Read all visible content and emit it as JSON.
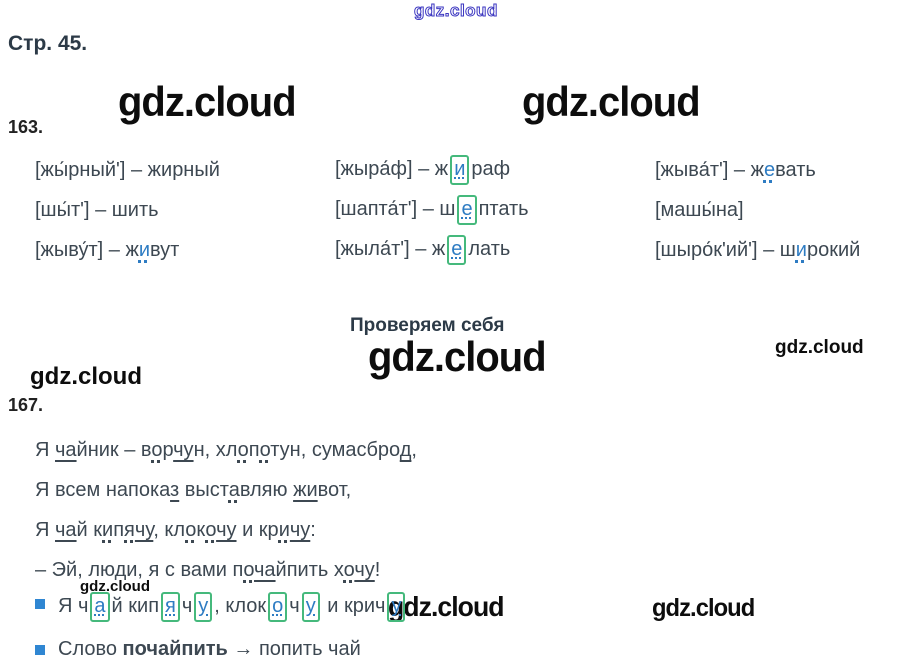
{
  "brand": {
    "text": "gdz.cloud"
  },
  "colors": {
    "accent_blue_letter": "#2e7cc3",
    "orthogram_box_green": "#45b97c",
    "bullet_blue": "#2f86d2",
    "watermark_outline_blue": "#3a35c0",
    "ink": "#3d4852"
  },
  "page": {
    "title": "Стр. 45."
  },
  "exercise163": {
    "number": "163.",
    "rows": [
      [
        [
          {
            "t": "[жы́рный'] – жирный",
            "m": "p"
          }
        ],
        [
          {
            "t": "[жыра́ф] – ж",
            "m": "p"
          },
          {
            "t": "и",
            "m": "x"
          },
          {
            "t": "раф",
            "m": "p"
          }
        ],
        [
          {
            "t": "[жыва́т'] – ж",
            "m": "p"
          },
          {
            "t": "е",
            "m": "b"
          },
          {
            "t": "вать",
            "m": "p"
          }
        ]
      ],
      [
        [
          {
            "t": "[шы́т'] – шить",
            "m": "p"
          }
        ],
        [
          {
            "t": "[шапта́т'] – ш",
            "m": "p"
          },
          {
            "t": "е",
            "m": "x"
          },
          {
            "t": "птать",
            "m": "p"
          }
        ],
        [
          {
            "t": "[машы́на]",
            "m": "p"
          }
        ]
      ],
      [
        [
          {
            "t": "[жыву́т] – ж",
            "m": "p"
          },
          {
            "t": "и",
            "m": "b"
          },
          {
            "t": "вут",
            "m": "p"
          }
        ],
        [
          {
            "t": "[жыла́т'] – ж",
            "m": "p"
          },
          {
            "t": "е",
            "m": "x"
          },
          {
            "t": "лать",
            "m": "p"
          }
        ],
        [
          {
            "t": "[шыро́к'ий'] – ш",
            "m": "p"
          },
          {
            "t": "и",
            "m": "b"
          },
          {
            "t": "рокий",
            "m": "p"
          }
        ]
      ]
    ]
  },
  "heading": {
    "text": "Проверяем себя"
  },
  "exercise167": {
    "number": "167.",
    "poem": [
      [
        {
          "t": "Я ",
          "m": "p"
        },
        {
          "t": "ча",
          "m": "u"
        },
        {
          "t": "йник – в",
          "m": "p"
        },
        {
          "t": "о",
          "m": "d"
        },
        {
          "t": "р",
          "m": "p"
        },
        {
          "t": "чу",
          "m": "u"
        },
        {
          "t": "н, хл",
          "m": "p"
        },
        {
          "t": "о",
          "m": "d"
        },
        {
          "t": "п",
          "m": "p"
        },
        {
          "t": "о",
          "m": "d"
        },
        {
          "t": "тун, сумасбро",
          "m": "p"
        },
        {
          "t": "д",
          "m": "u"
        },
        {
          "t": ",",
          "m": "p"
        }
      ],
      [
        {
          "t": "Я всем напока",
          "m": "p"
        },
        {
          "t": "з",
          "m": "u"
        },
        {
          "t": " выст",
          "m": "p"
        },
        {
          "t": "а",
          "m": "d"
        },
        {
          "t": "вляю ",
          "m": "p"
        },
        {
          "t": "жи",
          "m": "u"
        },
        {
          "t": "вот,",
          "m": "p"
        }
      ],
      [
        {
          "t": "Я ",
          "m": "p"
        },
        {
          "t": "ча",
          "m": "u"
        },
        {
          "t": "й к",
          "m": "p"
        },
        {
          "t": "и",
          "m": "d"
        },
        {
          "t": "п",
          "m": "p"
        },
        {
          "t": "я",
          "m": "d"
        },
        {
          "t": "чу",
          "m": "u"
        },
        {
          "t": ", кл",
          "m": "p"
        },
        {
          "t": "о",
          "m": "d"
        },
        {
          "t": "к",
          "m": "p"
        },
        {
          "t": "о",
          "m": "d"
        },
        {
          "t": "чу",
          "m": "u"
        },
        {
          "t": " и кр",
          "m": "p"
        },
        {
          "t": "и",
          "m": "d"
        },
        {
          "t": "чу",
          "m": "u"
        },
        {
          "t": ":",
          "m": "p"
        }
      ],
      [
        {
          "t": "– Эй, люди, я с вами п",
          "m": "p"
        },
        {
          "t": "о",
          "m": "d"
        },
        {
          "t": "ча",
          "m": "u"
        },
        {
          "t": "йпить х",
          "m": "p"
        },
        {
          "t": "о",
          "m": "d"
        },
        {
          "t": "чу",
          "m": "u"
        },
        {
          "t": "!",
          "m": "p"
        }
      ]
    ],
    "bullets": [
      [
        {
          "t": "Я ч",
          "m": "p"
        },
        {
          "t": "а",
          "m": "x"
        },
        {
          "t": "й кип",
          "m": "p"
        },
        {
          "t": "я",
          "m": "x"
        },
        {
          "t": "ч",
          "m": "p"
        },
        {
          "t": "у",
          "m": "x"
        },
        {
          "t": ", клок",
          "m": "p"
        },
        {
          "t": "о",
          "m": "x"
        },
        {
          "t": "ч",
          "m": "p"
        },
        {
          "t": "у",
          "m": "x"
        },
        {
          "t": " и крич",
          "m": "p"
        },
        {
          "t": "у",
          "m": "x"
        }
      ],
      [
        {
          "t": "Слово ",
          "m": "p"
        },
        {
          "t": "почайпить",
          "m": "B"
        },
        {
          "t": " → попить чай",
          "m": "p"
        }
      ]
    ]
  }
}
